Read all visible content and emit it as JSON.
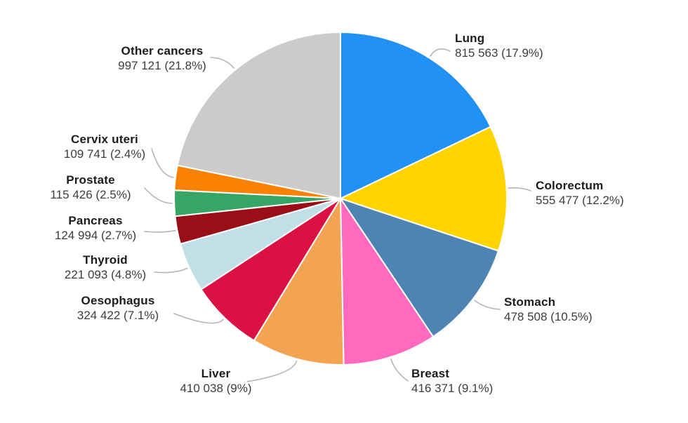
{
  "chart_data": {
    "type": "pie",
    "title": "",
    "legend_position": "none",
    "grid": false,
    "label_style": "name on first line, absolute count with space thousands separator and percent in parentheses on second line",
    "slices": [
      {
        "name": "Lung",
        "value": 815563,
        "pct": 17.9,
        "value_label": "815 563 (17.9%)",
        "color": "#2191f3"
      },
      {
        "name": "Colorectum",
        "value": 555477,
        "pct": 12.2,
        "value_label": "555 477 (12.2%)",
        "color": "#ffd400"
      },
      {
        "name": "Stomach",
        "value": 478508,
        "pct": 10.5,
        "value_label": "478 508 (10.5%)",
        "color": "#4d84b2"
      },
      {
        "name": "Breast",
        "value": 416371,
        "pct": 9.1,
        "value_label": "416 371 (9.1%)",
        "color": "#ff69be"
      },
      {
        "name": "Liver",
        "value": 410038,
        "pct": 9.0,
        "value_label": "410 038 (9%)",
        "color": "#f2a452"
      },
      {
        "name": "Oesophagus",
        "value": 324422,
        "pct": 7.1,
        "value_label": "324 422 (7.1%)",
        "color": "#dc1143"
      },
      {
        "name": "Thyroid",
        "value": 221093,
        "pct": 4.8,
        "value_label": "221 093 (4.8%)",
        "color": "#c2dfe8"
      },
      {
        "name": "Pancreas",
        "value": 124994,
        "pct": 2.7,
        "value_label": "124 994 (2.7%)",
        "color": "#9a0e18"
      },
      {
        "name": "Prostate",
        "value": 115426,
        "pct": 2.5,
        "value_label": "115 426 (2.5%)",
        "color": "#36a566"
      },
      {
        "name": "Cervix uteri",
        "value": 109741,
        "pct": 2.4,
        "value_label": "109 741 (2.4%)",
        "color": "#f98204"
      },
      {
        "name": "Other cancers",
        "value": 997121,
        "pct": 21.8,
        "value_label": "997 121 (21.8%)",
        "color": "#cccbc9"
      }
    ],
    "style": {
      "slice_border_color": "#ffffff",
      "leader_line_color": "#b5b5b5",
      "label_name_color": "#1c1c1c",
      "label_value_color": "#3d3d3d",
      "background": "#ffffff"
    }
  }
}
